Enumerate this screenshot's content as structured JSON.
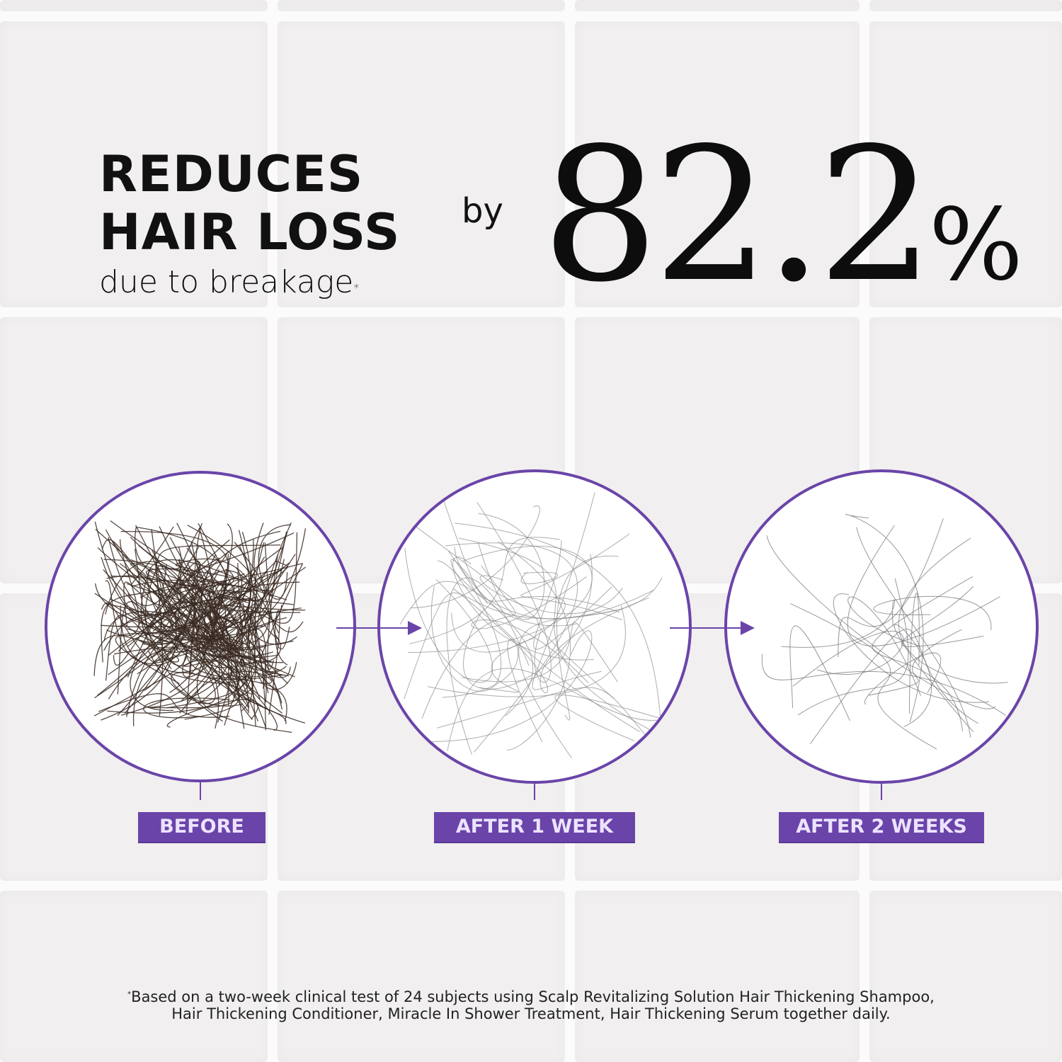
{
  "headline": {
    "line1": "REDUCES",
    "line2": "HAIR LOSS",
    "line3": "due to breakage",
    "asterisk": "*",
    "connector": "by",
    "stat_number": "82.2",
    "stat_unit": "%"
  },
  "stages": [
    {
      "label": "BEFORE",
      "hair_density": "heavy",
      "hair_color": "#3a2a22"
    },
    {
      "label": "AFTER 1 WEEK",
      "hair_density": "medium",
      "hair_color": "#8a8a8e"
    },
    {
      "label": "AFTER 2 WEEKS",
      "hair_density": "light",
      "hair_color": "#6e6e74"
    }
  ],
  "footnote": {
    "asterisk": "*",
    "line1": "Based on a two-week clinical test of 24 subjects using Scalp Revitalizing Solution Hair Thickening Shampoo,",
    "line2": "Hair Thickening Conditioner, Miracle In Shower Treatment, Hair Thickening Serum together daily."
  },
  "colors": {
    "accent": "#6a44a9",
    "label_text": "#ece3ff",
    "tile": "#f1efef",
    "grout": "#fbfbfb"
  }
}
